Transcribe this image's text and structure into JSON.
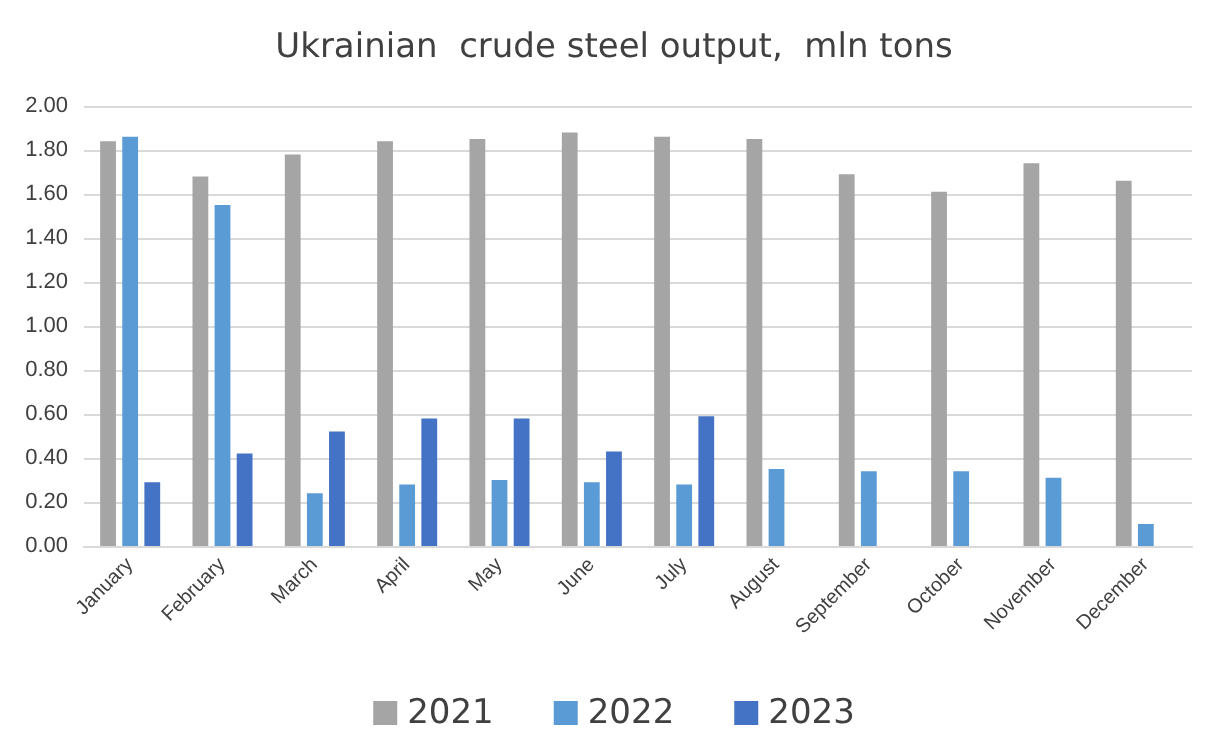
{
  "chart_data": {
    "type": "bar",
    "title": "Ukrainian  crude steel output,  mln tons",
    "categories": [
      "January",
      "February",
      "March",
      "April",
      "May",
      "June",
      "July",
      "August",
      "September",
      "October",
      "November",
      "December"
    ],
    "series": [
      {
        "name": "2021",
        "color": "#a5a5a5",
        "values": [
          1.84,
          1.68,
          1.78,
          1.84,
          1.85,
          1.88,
          1.86,
          1.85,
          1.69,
          1.61,
          1.74,
          1.66
        ]
      },
      {
        "name": "2022",
        "color": "#5b9bd5",
        "values": [
          1.86,
          1.55,
          0.24,
          0.28,
          0.3,
          0.29,
          0.28,
          0.35,
          0.34,
          0.34,
          0.31,
          0.1
        ]
      },
      {
        "name": "2023",
        "color": "#4472c4",
        "values": [
          0.29,
          0.42,
          0.52,
          0.58,
          0.58,
          0.43,
          0.59,
          null,
          null,
          null,
          null,
          null
        ]
      }
    ],
    "ylim": [
      0,
      2
    ],
    "yticks": [
      {
        "value": 0,
        "label": "0.00"
      },
      {
        "value": 0.2,
        "label": "0.20"
      },
      {
        "value": 0.4,
        "label": "0.40"
      },
      {
        "value": 0.6,
        "label": "0.60"
      },
      {
        "value": 0.8,
        "label": "0.80"
      },
      {
        "value": 1,
        "label": "1.00"
      },
      {
        "value": 1.2,
        "label": "1.20"
      },
      {
        "value": 1.4,
        "label": "1.40"
      },
      {
        "value": 1.6,
        "label": "1.60"
      },
      {
        "value": 1.8,
        "label": "1.80"
      },
      {
        "value": 2,
        "label": "2.00"
      }
    ],
    "grid": "y",
    "legend": "bottom"
  }
}
